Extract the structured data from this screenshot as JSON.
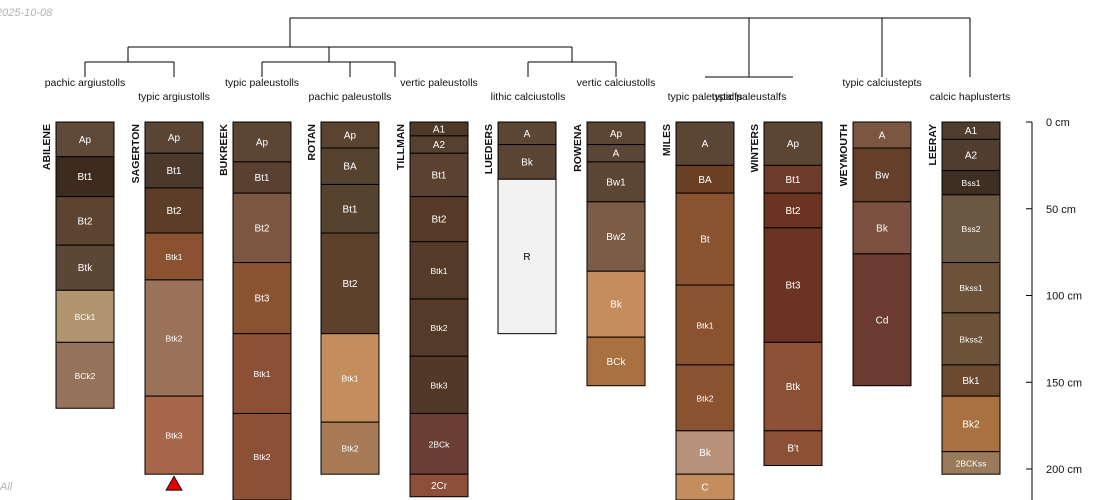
{
  "header": {
    "date": "2025-10-08",
    "corner_text": "All"
  },
  "depth_axis": {
    "unit": "cm",
    "max_depth": 220,
    "ticks": [
      {
        "value": 0,
        "label": "0 cm"
      },
      {
        "value": 50,
        "label": "50 cm"
      },
      {
        "value": 100,
        "label": "100 cm"
      },
      {
        "value": 150,
        "label": "150 cm"
      },
      {
        "value": 200,
        "label": "200 cm"
      }
    ]
  },
  "profiles": [
    {
      "name": "ABILENE",
      "taxonomy": "pachic argiustolls",
      "truncated": false,
      "horizons": [
        {
          "name": "Ap",
          "top": 0,
          "bottom": 20,
          "color": "#5f4a3a"
        },
        {
          "name": "Bt1",
          "top": 20,
          "bottom": 43,
          "color": "#3c2b1d"
        },
        {
          "name": "Bt2",
          "top": 43,
          "bottom": 71,
          "color": "#5c4430"
        },
        {
          "name": "Btk",
          "top": 71,
          "bottom": 97,
          "color": "#5a4734"
        },
        {
          "name": "BCk1",
          "top": 97,
          "bottom": 127,
          "color": "#b09570"
        },
        {
          "name": "BCk2",
          "top": 127,
          "bottom": 165,
          "color": "#95735a"
        }
      ]
    },
    {
      "name": "SAGERTON",
      "taxonomy": "typic argiustolls",
      "truncated": true,
      "horizons": [
        {
          "name": "Ap",
          "top": 0,
          "bottom": 18,
          "color": "#5a4534"
        },
        {
          "name": "Bt1",
          "top": 18,
          "bottom": 38,
          "color": "#4b3a2b"
        },
        {
          "name": "Bt2",
          "top": 38,
          "bottom": 64,
          "color": "#5c3d28"
        },
        {
          "name": "Btk1",
          "top": 64,
          "bottom": 91,
          "color": "#8b5231"
        },
        {
          "name": "Btk2",
          "top": 91,
          "bottom": 158,
          "color": "#9a7159"
        },
        {
          "name": "Btk3",
          "top": 158,
          "bottom": 203,
          "color": "#a8664b"
        }
      ]
    },
    {
      "name": "BUKREEK",
      "taxonomy": "typic paleustolls",
      "truncated": false,
      "horizons": [
        {
          "name": "Ap",
          "top": 0,
          "bottom": 23,
          "color": "#5b4535"
        },
        {
          "name": "Bt1",
          "top": 23,
          "bottom": 41,
          "color": "#594030"
        },
        {
          "name": "Bt2",
          "top": 41,
          "bottom": 81,
          "color": "#7c5640"
        },
        {
          "name": "Bt3",
          "top": 81,
          "bottom": 122,
          "color": "#8a5330"
        },
        {
          "name": "Btk1",
          "top": 122,
          "bottom": 168,
          "color": "#8c5036"
        },
        {
          "name": "Btk2",
          "top": 168,
          "bottom": 220,
          "color": "#8c5036"
        }
      ]
    },
    {
      "name": "ROTAN",
      "taxonomy": "pachic paleustolls",
      "truncated": false,
      "horizons": [
        {
          "name": "Ap",
          "top": 0,
          "bottom": 15,
          "color": "#5b4331"
        },
        {
          "name": "BA",
          "top": 15,
          "bottom": 36,
          "color": "#56432f"
        },
        {
          "name": "Bt1",
          "top": 36,
          "bottom": 64,
          "color": "#56432f"
        },
        {
          "name": "Bt2",
          "top": 64,
          "bottom": 122,
          "color": "#5e412b"
        },
        {
          "name": "Btk1",
          "top": 122,
          "bottom": 173,
          "color": "#c48d5d"
        },
        {
          "name": "Btk2",
          "top": 173,
          "bottom": 203,
          "color": "#a87a55"
        }
      ]
    },
    {
      "name": "TILLMAN",
      "taxonomy": "vertic paleustolls",
      "truncated": false,
      "horizons": [
        {
          "name": "A1",
          "top": 0,
          "bottom": 8,
          "color": "#4f3a2a"
        },
        {
          "name": "A2",
          "top": 8,
          "bottom": 18,
          "color": "#56412f"
        },
        {
          "name": "Bt1",
          "top": 18,
          "bottom": 43,
          "color": "#5a4130"
        },
        {
          "name": "Bt2",
          "top": 43,
          "bottom": 69,
          "color": "#563a27"
        },
        {
          "name": "Btk1",
          "top": 69,
          "bottom": 102,
          "color": "#543a28"
        },
        {
          "name": "Btk2",
          "top": 102,
          "bottom": 135,
          "color": "#543a28"
        },
        {
          "name": "Btk3",
          "top": 135,
          "bottom": 168,
          "color": "#523826"
        },
        {
          "name": "2BCk",
          "top": 168,
          "bottom": 203,
          "color": "#6b3f33"
        },
        {
          "name": "2Cr",
          "top": 203,
          "bottom": 216,
          "color": "#8f4e3a"
        }
      ]
    },
    {
      "name": "LUEDERS",
      "taxonomy": "lithic calciustolls",
      "truncated": false,
      "horizons": [
        {
          "name": "A",
          "top": 0,
          "bottom": 13,
          "color": "#5b4535"
        },
        {
          "name": "Bk",
          "top": 13,
          "bottom": 33,
          "color": "#5a4433"
        },
        {
          "name": "R",
          "top": 33,
          "bottom": 122,
          "color": "#f2f2f2"
        }
      ]
    },
    {
      "name": "ROWENA",
      "taxonomy": "vertic calciustolls",
      "truncated": false,
      "horizons": [
        {
          "name": "Ap",
          "top": 0,
          "bottom": 13,
          "color": "#5b4535"
        },
        {
          "name": "A",
          "top": 13,
          "bottom": 23,
          "color": "#5a4636"
        },
        {
          "name": "Bw1",
          "top": 23,
          "bottom": 46,
          "color": "#5c4532"
        },
        {
          "name": "Bw2",
          "top": 46,
          "bottom": 86,
          "color": "#7a5c47"
        },
        {
          "name": "Bk",
          "top": 86,
          "bottom": 124,
          "color": "#c48d5d"
        },
        {
          "name": "BCk",
          "top": 124,
          "bottom": 152,
          "color": "#a8713f"
        }
      ]
    },
    {
      "name": "MILES",
      "taxonomy": "typic paleustalfs",
      "truncated": false,
      "horizons": [
        {
          "name": "A",
          "top": 0,
          "bottom": 25,
          "color": "#5b4535"
        },
        {
          "name": "BA",
          "top": 25,
          "bottom": 41,
          "color": "#6b3f23"
        },
        {
          "name": "Bt",
          "top": 41,
          "bottom": 94,
          "color": "#8a5330"
        },
        {
          "name": "Btk1",
          "top": 94,
          "bottom": 140,
          "color": "#8a5330"
        },
        {
          "name": "Btk2",
          "top": 140,
          "bottom": 178,
          "color": "#8a5330"
        },
        {
          "name": "Bk",
          "top": 178,
          "bottom": 203,
          "color": "#b8917a"
        },
        {
          "name": "C",
          "top": 203,
          "bottom": 220,
          "color": "#c48d5d"
        }
      ]
    },
    {
      "name": "WINTERS",
      "taxonomy": "typic paleustalfs",
      "truncated": false,
      "horizons": [
        {
          "name": "Ap",
          "top": 0,
          "bottom": 25,
          "color": "#5b4535"
        },
        {
          "name": "Bt1",
          "top": 25,
          "bottom": 41,
          "color": "#6e3a2c"
        },
        {
          "name": "Bt2",
          "top": 41,
          "bottom": 61,
          "color": "#6b3321"
        },
        {
          "name": "Bt3",
          "top": 61,
          "bottom": 127,
          "color": "#6b3321"
        },
        {
          "name": "Btk",
          "top": 127,
          "bottom": 178,
          "color": "#8c5036"
        },
        {
          "name": "B't",
          "top": 178,
          "bottom": 198,
          "color": "#8c5036"
        }
      ]
    },
    {
      "name": "WEYMOUTH",
      "taxonomy": "typic calciustepts",
      "truncated": false,
      "horizons": [
        {
          "name": "A",
          "top": 0,
          "bottom": 15,
          "color": "#7c5640"
        },
        {
          "name": "Bw",
          "top": 15,
          "bottom": 46,
          "color": "#653f2a"
        },
        {
          "name": "Bk",
          "top": 46,
          "bottom": 76,
          "color": "#7b5241"
        },
        {
          "name": "Cd",
          "top": 76,
          "bottom": 152,
          "color": "#6b3a30"
        }
      ]
    },
    {
      "name": "LEERAY",
      "taxonomy": "calcic haplusterts",
      "truncated": false,
      "horizons": [
        {
          "name": "A1",
          "top": 0,
          "bottom": 10,
          "color": "#4f3e2f"
        },
        {
          "name": "A2",
          "top": 10,
          "bottom": 28,
          "color": "#4f3e2f"
        },
        {
          "name": "Bss1",
          "top": 28,
          "bottom": 42,
          "color": "#3e2f22"
        },
        {
          "name": "Bss2",
          "top": 42,
          "bottom": 81,
          "color": "#6b5843"
        },
        {
          "name": "Bkss1",
          "top": 81,
          "bottom": 110,
          "color": "#6b5238"
        },
        {
          "name": "Bkss2",
          "top": 110,
          "bottom": 140,
          "color": "#6b5238"
        },
        {
          "name": "Bk1",
          "top": 140,
          "bottom": 158,
          "color": "#6b4a2f"
        },
        {
          "name": "Bk2",
          "top": 158,
          "bottom": 190,
          "color": "#a8713f"
        },
        {
          "name": "2BCKss",
          "top": 190,
          "bottom": 203,
          "color": "#9a7a5a"
        }
      ]
    }
  ]
}
